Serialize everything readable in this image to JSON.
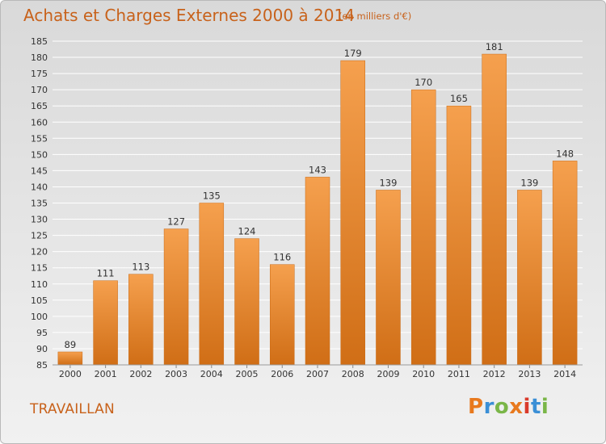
{
  "header": {
    "title": "Achats et Charges Externes 2000 à 2014",
    "subtitle": "(en milliers d'€)"
  },
  "footer": {
    "city": "TRAVAILLAN",
    "brand_letters": [
      "P",
      "r",
      "o",
      "x",
      "i",
      "t",
      "i"
    ],
    "brand_colors": [
      "#e8791e",
      "#3a8fd6",
      "#7ab648",
      "#e8791e",
      "#d93a2b",
      "#3a8fd6",
      "#7ab648"
    ]
  },
  "colors": {
    "bar_top": "#f5a04e",
    "bar_bottom": "#d06e16",
    "grid": "#ffffff",
    "text": "#333333",
    "accent": "#c8621b"
  },
  "chart_data": {
    "type": "bar",
    "categories": [
      "2000",
      "2001",
      "2002",
      "2003",
      "2004",
      "2005",
      "2006",
      "2007",
      "2008",
      "2009",
      "2010",
      "2011",
      "2012",
      "2013",
      "2014"
    ],
    "values": [
      89,
      111,
      113,
      127,
      135,
      124,
      116,
      143,
      179,
      139,
      170,
      165,
      181,
      139,
      148
    ],
    "yticks": [
      85,
      90,
      95,
      100,
      105,
      110,
      115,
      120,
      125,
      130,
      135,
      140,
      145,
      150,
      155,
      160,
      165,
      170,
      175,
      180,
      185
    ],
    "ylim": [
      85,
      185
    ],
    "grid": true
  }
}
